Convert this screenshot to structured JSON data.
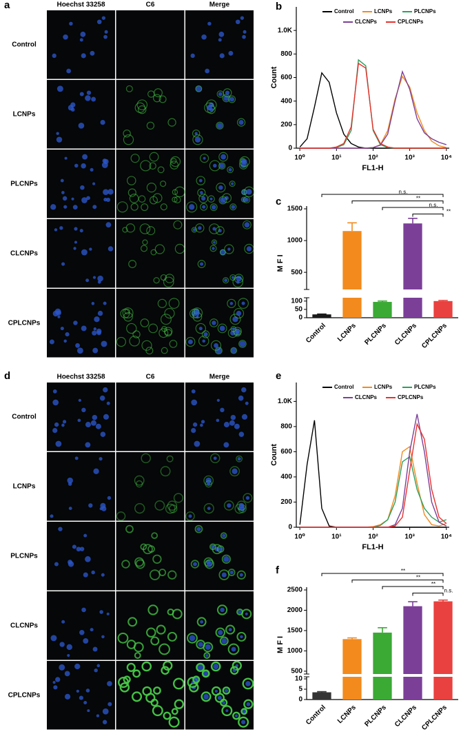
{
  "image_grids": [
    {
      "panel": "a",
      "columns": [
        "Hoechst 33258",
        "C6",
        "Merge"
      ],
      "rows": [
        "Control",
        "LCNPs",
        "PLCNPs",
        "CLCNPs",
        "CPLCNPs"
      ]
    },
    {
      "panel": "d",
      "columns": [
        "Hoechst 33258",
        "C6",
        "Merge"
      ],
      "rows": [
        "Control",
        "LCNPs",
        "PLCNPs",
        "CLCNPs",
        "CPLCNPs"
      ]
    }
  ],
  "chart_data": [
    {
      "panel": "b",
      "type": "line",
      "xlabel": "FL1-H",
      "ylabel": "Count",
      "xscale": "log",
      "legend": "top",
      "x": [
        1,
        1.58,
        2.51,
        3.98,
        6.31,
        10,
        15.8,
        25.1,
        39.8,
        63.1,
        100,
        158,
        251,
        398,
        631,
        1000,
        1585,
        2512,
        3981,
        6310,
        10000
      ],
      "xlim": [
        0.8,
        12000
      ],
      "xticks": [
        {
          "value": 1,
          "label": "10⁰"
        },
        {
          "value": 10,
          "label": "10¹"
        },
        {
          "value": 100,
          "label": "10²"
        },
        {
          "value": 1000,
          "label": "10³"
        },
        {
          "value": 10000,
          "label": "10⁴"
        }
      ],
      "ylim": [
        0,
        1200
      ],
      "yticks": [
        0,
        200,
        400,
        600,
        800,
        {
          "value": 1000,
          "label": "1.0K"
        }
      ],
      "series": [
        {
          "name": "Control",
          "color": "#000000",
          "values": [
            10,
            80,
            350,
            640,
            560,
            300,
            120,
            40,
            10,
            0,
            0,
            0,
            0,
            0,
            0,
            0,
            0,
            0,
            0,
            0,
            0
          ]
        },
        {
          "name": "LCNPs",
          "color": "#f28a1e",
          "values": [
            0,
            0,
            0,
            0,
            0,
            0,
            0,
            0,
            0,
            0,
            5,
            30,
            150,
            420,
            610,
            520,
            300,
            150,
            60,
            20,
            5
          ]
        },
        {
          "name": "PLCNPs",
          "color": "#2ca05a",
          "values": [
            0,
            0,
            0,
            0,
            0,
            5,
            30,
            150,
            750,
            700,
            150,
            30,
            5,
            0,
            0,
            0,
            0,
            0,
            0,
            0,
            0
          ]
        },
        {
          "name": "CLCNPs",
          "color": "#7b3f98",
          "values": [
            0,
            0,
            0,
            0,
            0,
            0,
            0,
            0,
            0,
            0,
            5,
            25,
            120,
            400,
            650,
            500,
            250,
            130,
            80,
            50,
            30
          ]
        },
        {
          "name": "CPLCNPs",
          "color": "#e8302c",
          "values": [
            0,
            0,
            0,
            0,
            0,
            10,
            40,
            180,
            720,
            680,
            160,
            40,
            10,
            0,
            0,
            0,
            0,
            0,
            0,
            0,
            0
          ]
        }
      ]
    },
    {
      "panel": "c",
      "type": "bar",
      "ylabel": "M F I",
      "categories": [
        "Control",
        "LCNPs",
        "PLCNPs",
        "CLCNPs",
        "CPLCNPs"
      ],
      "values": [
        20,
        1150,
        95,
        1270,
        100
      ],
      "errors": [
        2,
        130,
        5,
        80,
        4
      ],
      "colors": [
        "#1a1a1a",
        "#f28a1e",
        "#3aaa35",
        "#7b3f98",
        "#e8413f"
      ],
      "ylim": [
        0,
        1500
      ],
      "ybreak": [
        120,
        230
      ],
      "yticks": [
        0,
        50,
        100,
        500,
        1000,
        1500
      ],
      "significance": [
        {
          "from": 0,
          "to": 4,
          "label": "n.s."
        },
        {
          "from": 1,
          "to": 4,
          "label": "**"
        },
        {
          "from": 2,
          "to": 4,
          "label": "n.s."
        },
        {
          "from": 3,
          "to": 4,
          "label": "**"
        }
      ]
    },
    {
      "panel": "e",
      "type": "line",
      "xlabel": "FL1-H",
      "ylabel": "Count",
      "xscale": "log",
      "legend": "top",
      "x": [
        1,
        1.58,
        2.51,
        3.98,
        6.31,
        10,
        15.8,
        25.1,
        39.8,
        63.1,
        100,
        158,
        251,
        398,
        631,
        1000,
        1585,
        2512,
        3981,
        6310,
        10000
      ],
      "xlim": [
        0.8,
        12000
      ],
      "xticks": [
        {
          "value": 1,
          "label": "10⁰"
        },
        {
          "value": 10,
          "label": "10¹"
        },
        {
          "value": 100,
          "label": "10²"
        },
        {
          "value": 1000,
          "label": "10³"
        },
        {
          "value": 10000,
          "label": "10⁴"
        }
      ],
      "ylim": [
        0,
        1150
      ],
      "yticks": [
        0,
        200,
        400,
        600,
        800,
        {
          "value": 1000,
          "label": "1.0K"
        }
      ],
      "series": [
        {
          "name": "Control",
          "color": "#000000",
          "values": [
            20,
            500,
            850,
            150,
            10,
            0,
            0,
            0,
            0,
            0,
            0,
            0,
            0,
            0,
            0,
            0,
            0,
            0,
            0,
            0,
            0
          ]
        },
        {
          "name": "LCNPs",
          "color": "#f28a1e",
          "values": [
            0,
            0,
            0,
            0,
            0,
            0,
            0,
            0,
            0,
            0,
            5,
            20,
            60,
            250,
            600,
            640,
            350,
            100,
            20,
            10,
            30
          ]
        },
        {
          "name": "PLCNPs",
          "color": "#2ca05a",
          "values": [
            0,
            0,
            0,
            0,
            0,
            0,
            0,
            0,
            0,
            0,
            0,
            15,
            60,
            200,
            520,
            560,
            300,
            150,
            80,
            40,
            60
          ]
        },
        {
          "name": "CLCNPs",
          "color": "#7b3f98",
          "values": [
            0,
            0,
            0,
            0,
            0,
            0,
            0,
            0,
            0,
            0,
            0,
            0,
            0,
            20,
            150,
            600,
            900,
            600,
            200,
            40,
            10
          ]
        },
        {
          "name": "CPLCNPs",
          "color": "#e8302c",
          "values": [
            0,
            0,
            0,
            0,
            0,
            0,
            0,
            0,
            0,
            0,
            0,
            0,
            0,
            10,
            80,
            450,
            820,
            700,
            300,
            80,
            30
          ]
        }
      ]
    },
    {
      "panel": "f",
      "type": "bar",
      "ylabel": "M F I",
      "categories": [
        "Control",
        "LCNPs",
        "PLCNPs",
        "CLCNPs",
        "CPLCNPs"
      ],
      "values": [
        3.5,
        1290,
        1450,
        2100,
        2220
      ],
      "errors": [
        0.3,
        30,
        120,
        110,
        30
      ],
      "colors": [
        "#333333",
        "#f28a1e",
        "#3aaa35",
        "#7b3f98",
        "#e8413f"
      ],
      "ylim": [
        0,
        2500
      ],
      "ybreak": [
        11,
        430
      ],
      "yticks": [
        0,
        5,
        10,
        500,
        1000,
        1500,
        2000,
        2500
      ],
      "significance": [
        {
          "from": 0,
          "to": 4,
          "label": "**"
        },
        {
          "from": 1,
          "to": 4,
          "label": "**"
        },
        {
          "from": 2,
          "to": 4,
          "label": "**"
        },
        {
          "from": 3,
          "to": 4,
          "label": "n.s."
        }
      ]
    }
  ]
}
